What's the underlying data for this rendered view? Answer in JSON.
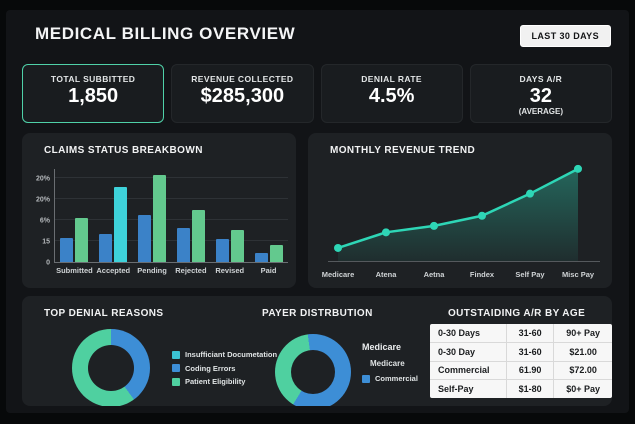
{
  "header": {
    "title": "MEDICAL BILLING OVERVIEW",
    "range_button": "LAST 30 DAYS"
  },
  "kpis": [
    {
      "label": "TOTAL SUBBITTED",
      "value": "1,850"
    },
    {
      "label": "REVENUE COLLECTED",
      "value": "$285,300"
    },
    {
      "label": "DENIAL RATE",
      "value": "4.5%"
    },
    {
      "label": "DAYS A/R",
      "value": "32",
      "sub": "(AVERAGE)"
    }
  ],
  "colors": {
    "background": "#121417",
    "panel": "#1e2124",
    "kpi_highlight_border": "#4fd1a8",
    "bar_blue": "#3b82c8",
    "bar_green": "#63c98e",
    "bar_cyan": "#3ed2da",
    "line_teal": "#2ed6b6",
    "donut_blue": "#3d8ed6",
    "donut_green": "#4fd0a0",
    "legend_cyan": "#3bc3d4"
  },
  "chart_data": [
    {
      "id": "claims",
      "type": "bar",
      "title": "CLAIMS STATUS BREAKBOWN",
      "categories": [
        "Submitted",
        "Accepted",
        "Pending",
        "Rejected",
        "Revised",
        "Paid"
      ],
      "series": [
        {
          "name": "series-1",
          "color": "#3b82c8",
          "values": [
            5.8,
            6.6,
            11.1,
            8.1,
            5.4,
            2.2
          ]
        },
        {
          "name": "series-2",
          "colors": [
            "#63c98e",
            "#3ed2da",
            "#63c98e",
            "#63c98e",
            "#63c98e",
            "#63c98e"
          ],
          "values": [
            10.4,
            17.9,
            20.7,
            12.3,
            7.6,
            4.1
          ]
        }
      ],
      "y_ticks_top_to_bottom": [
        "20%",
        "20%",
        "6%",
        "15",
        "0"
      ],
      "ylim": [
        0,
        22.4
      ],
      "grid": true
    },
    {
      "id": "revenue",
      "type": "area",
      "title": "MONTHLY REVENUE TREND",
      "categories": [
        "Medicare",
        "Atena",
        "Aetna",
        "Findex",
        "Self Pay",
        "Misc Pay"
      ],
      "values": [
        12,
        29,
        36,
        47,
        71,
        98
      ],
      "ylim": [
        0,
        105
      ],
      "line_color": "#2ed6b6",
      "grid": false
    },
    {
      "id": "denial",
      "type": "pie",
      "title": "TOP DENIAL REASONS",
      "start_angle": 0,
      "segments": [
        {
          "color": "#3d8ed6",
          "pct": 40
        },
        {
          "color": "#4fd0a0",
          "pct": 60
        }
      ],
      "legend": [
        {
          "label": "Insufficiant Documetation",
          "color": "#3bc3d4"
        },
        {
          "label": "Coding Errors",
          "color": "#3d8ed6"
        },
        {
          "label": "Patient Eligibility",
          "color": "#4fd0a0"
        }
      ]
    },
    {
      "id": "payer",
      "type": "pie",
      "title": "PAYER DISTRBUTION",
      "start_angle": -8,
      "segments": [
        {
          "color": "#3d8ed6",
          "pct": 61
        },
        {
          "color": "#4fd0a0",
          "pct": 39
        }
      ],
      "legend": [
        {
          "label": "Medicare",
          "color": null
        },
        {
          "label": "Medicare",
          "color": null
        },
        {
          "label": "Commercial",
          "color": "#3d8ed6"
        }
      ]
    },
    {
      "id": "ar_table",
      "type": "table",
      "title": "OUTSTAIDING A/R BY AGE",
      "header": [
        "0-30 Days",
        "31-60",
        "90+ Pay"
      ],
      "rows": [
        [
          "0-30 Day",
          "31-60",
          "$21.00"
        ],
        [
          "Commercial",
          "61.90",
          "$72.00"
        ],
        [
          "Self-Pay",
          "$1-80",
          "$0+ Pay"
        ]
      ]
    }
  ]
}
